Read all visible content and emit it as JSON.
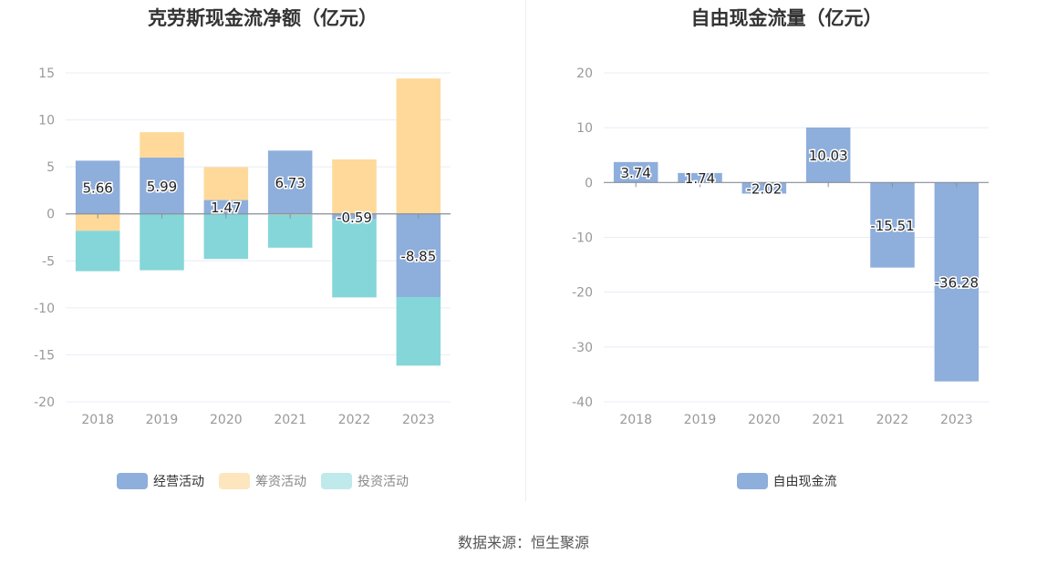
{
  "left_chart": {
    "title": "克劳斯现金流净额（亿元）",
    "legend": [
      "经营活动",
      "筹资活动",
      "投资活动"
    ]
  },
  "right_chart": {
    "title": "自由现金流量（亿元）",
    "legend": [
      "自由现金流"
    ]
  },
  "source": "数据来源：恒生聚源",
  "colors": {
    "operating": "#8eaedb",
    "financing": "#fed99a",
    "investing": "#85d6d8",
    "free_cash_flow": "#8eaedb",
    "grid": "#e8ecf5",
    "zero_line": "#8a8f99"
  },
  "chart_data": [
    {
      "type": "bar",
      "stacked": true,
      "title": "克劳斯现金流净额（亿元）",
      "categories": [
        "2018",
        "2019",
        "2020",
        "2021",
        "2022",
        "2023"
      ],
      "ylim": [
        -20,
        15
      ],
      "yticks": [
        15,
        10,
        5,
        0,
        -5,
        -10,
        -15,
        -20
      ],
      "series": [
        {
          "name": "经营活动",
          "values": [
            5.66,
            5.99,
            1.47,
            6.73,
            -0.59,
            -8.85
          ]
        },
        {
          "name": "筹资活动",
          "values": [
            -1.8,
            2.7,
            3.5,
            -0.1,
            5.8,
            14.4
          ]
        },
        {
          "name": "投资活动",
          "values": [
            -4.3,
            -6.0,
            -4.8,
            -3.5,
            -8.3,
            -7.3
          ]
        }
      ],
      "data_labels": [
        "5.66",
        "5.99",
        "1.47",
        "6.73",
        "-0.59",
        "-8.85"
      ],
      "grid": true,
      "legend_position": "bottom"
    },
    {
      "type": "bar",
      "title": "自由现金流量（亿元）",
      "categories": [
        "2018",
        "2019",
        "2020",
        "2021",
        "2022",
        "2023"
      ],
      "ylim": [
        -40,
        20
      ],
      "yticks": [
        20,
        10,
        0,
        -10,
        -20,
        -30,
        -40
      ],
      "series": [
        {
          "name": "自由现金流",
          "values": [
            3.74,
            1.74,
            -2.02,
            10.03,
            -15.51,
            -36.28
          ]
        }
      ],
      "data_labels": [
        "3.74",
        "1.74",
        "-2.02",
        "10.03",
        "-15.51",
        "-36.28"
      ],
      "grid": true,
      "legend_position": "bottom"
    }
  ]
}
